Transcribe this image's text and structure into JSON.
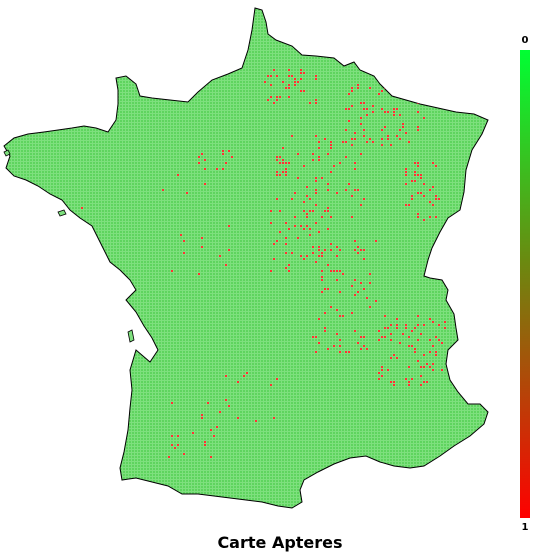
{
  "title": "Carte Apteres",
  "legend": {
    "max_label": "0",
    "min_label": "1",
    "color_top": "#00ff33",
    "color_bottom": "#ff0000"
  },
  "colors": {
    "land_fill": "#7ee07e",
    "grid_dot": "#55d655",
    "border": "#000000",
    "hotspot": "#ff3030"
  }
}
